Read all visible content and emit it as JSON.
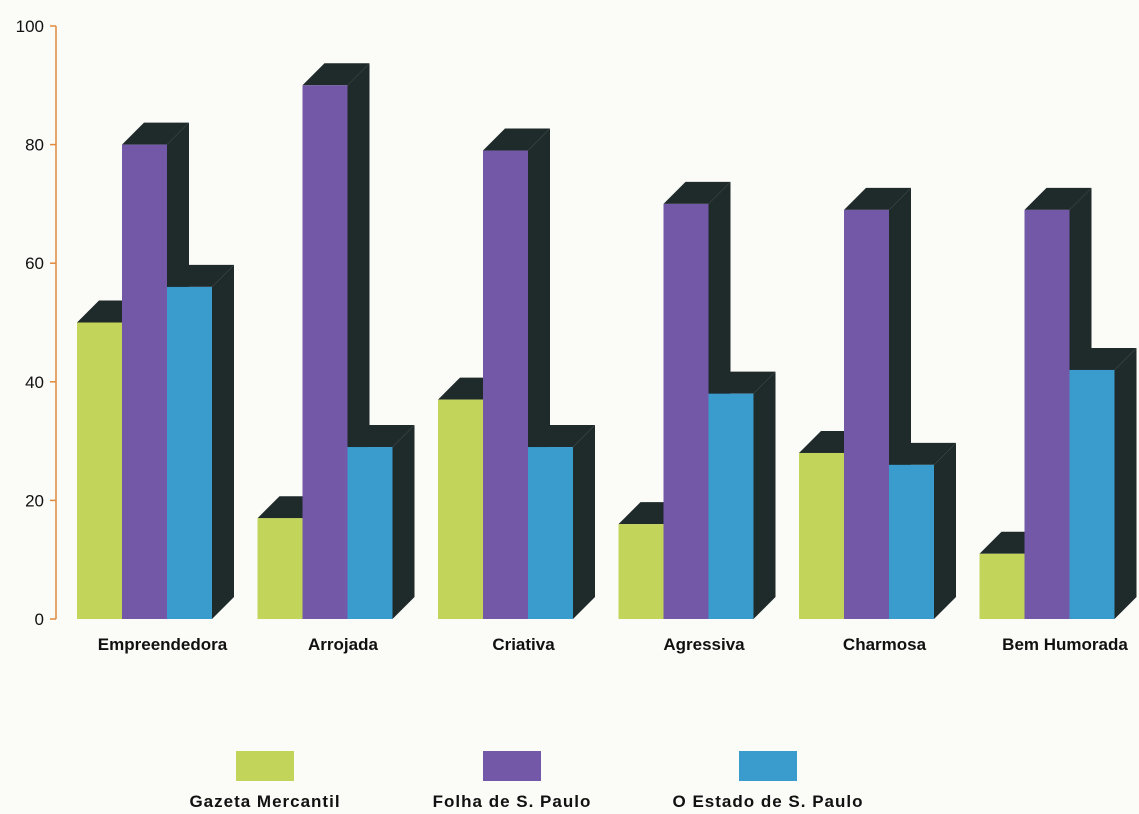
{
  "chart_data": {
    "type": "bar",
    "title": "",
    "xlabel": "",
    "ylabel": "",
    "ylim": [
      0,
      100
    ],
    "yticks": [
      0,
      20,
      40,
      60,
      80,
      100
    ],
    "grid": false,
    "legend_position": "bottom",
    "categories": [
      "Empreendedora",
      "Arrojada",
      "Criativa",
      "Agressiva",
      "Charmosa",
      "Bem Humorada"
    ],
    "series": [
      {
        "name": "Gazeta Mercantil",
        "color": "#c2d45a",
        "values": [
          50,
          17,
          37,
          16,
          28,
          11
        ]
      },
      {
        "name": "Folha de S. Paulo",
        "color": "#7358a8",
        "values": [
          80,
          90,
          79,
          70,
          69,
          69
        ]
      },
      {
        "name": "O Estado de S. Paulo",
        "color": "#3a9ccc",
        "values": [
          56,
          29,
          29,
          38,
          26,
          42
        ]
      }
    ],
    "axis_color": "#e08a3c",
    "shadow_color": "#1f2a2a"
  }
}
